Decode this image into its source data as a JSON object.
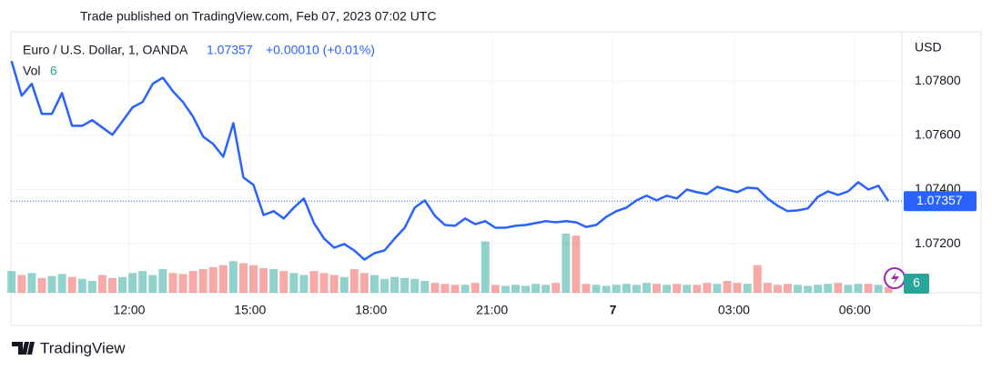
{
  "header": "Trade published on TradingView.com, Feb 07, 2023 07:02 UTC",
  "footer": "TradingView",
  "chart_data": {
    "type": "line",
    "title": "Euro / U.S. Dollar, 1, OANDA",
    "change": "+0.00010 (+0.01%)",
    "y_axis_label": "USD",
    "x": [
      "2023-02-06T09:05",
      "2023-02-06T09:20",
      "2023-02-06T09:35",
      "2023-02-06T09:50",
      "2023-02-06T10:05",
      "2023-02-06T10:20",
      "2023-02-06T10:35",
      "2023-02-06T10:50",
      "2023-02-06T11:05",
      "2023-02-06T11:20",
      "2023-02-06T11:35",
      "2023-02-06T11:50",
      "2023-02-06T12:05",
      "2023-02-06T12:20",
      "2023-02-06T12:35",
      "2023-02-06T12:50",
      "2023-02-06T13:05",
      "2023-02-06T13:20",
      "2023-02-06T13:35",
      "2023-02-06T13:50",
      "2023-02-06T14:05",
      "2023-02-06T14:20",
      "2023-02-06T14:35",
      "2023-02-06T14:50",
      "2023-02-06T15:05",
      "2023-02-06T15:20",
      "2023-02-06T15:35",
      "2023-02-06T15:50",
      "2023-02-06T16:05",
      "2023-02-06T16:20",
      "2023-02-06T16:35",
      "2023-02-06T16:50",
      "2023-02-06T17:05",
      "2023-02-06T17:20",
      "2023-02-06T17:35",
      "2023-02-06T17:50",
      "2023-02-06T18:05",
      "2023-02-06T18:20",
      "2023-02-06T18:35",
      "2023-02-06T18:50",
      "2023-02-06T19:05",
      "2023-02-06T19:20",
      "2023-02-06T19:35",
      "2023-02-06T19:50",
      "2023-02-06T20:05",
      "2023-02-06T20:20",
      "2023-02-06T20:35",
      "2023-02-06T20:50",
      "2023-02-06T21:05",
      "2023-02-06T21:20",
      "2023-02-06T21:35",
      "2023-02-06T21:50",
      "2023-02-06T22:05",
      "2023-02-06T22:20",
      "2023-02-06T22:35",
      "2023-02-06T22:50",
      "2023-02-06T23:05",
      "2023-02-06T23:20",
      "2023-02-06T23:35",
      "2023-02-06T23:50",
      "2023-02-07T00:05",
      "2023-02-07T00:20",
      "2023-02-07T00:35",
      "2023-02-07T00:50",
      "2023-02-07T01:05",
      "2023-02-07T01:20",
      "2023-02-07T01:35",
      "2023-02-07T01:50",
      "2023-02-07T02:05",
      "2023-02-07T02:20",
      "2023-02-07T02:35",
      "2023-02-07T02:50",
      "2023-02-07T03:05",
      "2023-02-07T03:20",
      "2023-02-07T03:35",
      "2023-02-07T03:50",
      "2023-02-07T04:05",
      "2023-02-07T04:20",
      "2023-02-07T04:35",
      "2023-02-07T04:50",
      "2023-02-07T05:05",
      "2023-02-07T05:20",
      "2023-02-07T05:35",
      "2023-02-07T05:50",
      "2023-02-07T06:05",
      "2023-02-07T06:20",
      "2023-02-07T06:35",
      "2023-02-07T06:50"
    ],
    "xlim": [
      "2023-02-06T09:04",
      "2023-02-07T07:10"
    ],
    "xticks": [
      {
        "value": "2023-02-06T12:00",
        "label": "12:00"
      },
      {
        "value": "2023-02-06T15:00",
        "label": "15:00"
      },
      {
        "value": "2023-02-06T18:00",
        "label": "18:00"
      },
      {
        "value": "2023-02-06T21:00",
        "label": "21:00"
      },
      {
        "value": "2023-02-07T00:00",
        "label": "7"
      },
      {
        "value": "2023-02-07T03:00",
        "label": "03:00"
      },
      {
        "value": "2023-02-07T06:00",
        "label": "06:00"
      }
    ],
    "ylim": [
      1.07019,
      1.07982
    ],
    "yticks": [
      {
        "value": 1.072,
        "label": "1.07200"
      },
      {
        "value": 1.074,
        "label": "1.07400"
      },
      {
        "value": 1.076,
        "label": "1.07600"
      },
      {
        "value": 1.078,
        "label": "1.07800"
      }
    ],
    "grid": true,
    "series": [
      {
        "color": "#2962ff",
        "values": [
          1.07874,
          1.07746,
          1.0779,
          1.07679,
          1.07679,
          1.07756,
          1.07635,
          1.07635,
          1.07656,
          1.07629,
          1.07602,
          1.07652,
          1.07703,
          1.07723,
          1.0779,
          1.07813,
          1.07763,
          1.07723,
          1.07669,
          1.07595,
          1.07568,
          1.07521,
          1.07645,
          1.07444,
          1.07417,
          1.07306,
          1.0732,
          1.07293,
          1.07333,
          1.07367,
          1.07276,
          1.07219,
          1.07185,
          1.07199,
          1.07175,
          1.07141,
          1.07165,
          1.07175,
          1.07219,
          1.07259,
          1.07333,
          1.0736,
          1.07303,
          1.07269,
          1.07266,
          1.07293,
          1.07272,
          1.07283,
          1.07259,
          1.07259,
          1.07266,
          1.07269,
          1.07276,
          1.07283,
          1.07279,
          1.07283,
          1.07279,
          1.07262,
          1.07269,
          1.07299,
          1.0732,
          1.07333,
          1.0736,
          1.07377,
          1.0736,
          1.07377,
          1.07367,
          1.074,
          1.0739,
          1.07383,
          1.0741,
          1.074,
          1.0739,
          1.07407,
          1.07404,
          1.07367,
          1.0734,
          1.0732,
          1.07323,
          1.0733,
          1.07373,
          1.07393,
          1.0738,
          1.07393,
          1.07427,
          1.074,
          1.07414,
          1.07357
        ]
      }
    ],
    "volume": {
      "name": "Vol",
      "up_color": "#26a69a",
      "down_color": "#ef5350",
      "values": [
        22,
        18,
        20,
        15,
        17,
        19,
        16,
        14,
        12,
        18,
        15,
        16,
        20,
        22,
        18,
        24,
        20,
        19,
        22,
        24,
        26,
        28,
        32,
        30,
        28,
        25,
        24,
        22,
        20,
        18,
        22,
        20,
        18,
        16,
        24,
        20,
        18,
        14,
        16,
        15,
        14,
        12,
        10,
        9,
        8,
        8,
        10,
        52,
        8,
        7,
        8,
        7,
        9,
        8,
        10,
        60,
        58,
        9,
        8,
        7,
        8,
        9,
        8,
        10,
        9,
        8,
        9,
        8,
        8,
        10,
        9,
        12,
        10,
        9,
        28,
        10,
        8,
        9,
        8,
        7,
        8,
        9,
        10,
        8,
        9,
        9,
        8,
        6
      ]
    }
  }
}
